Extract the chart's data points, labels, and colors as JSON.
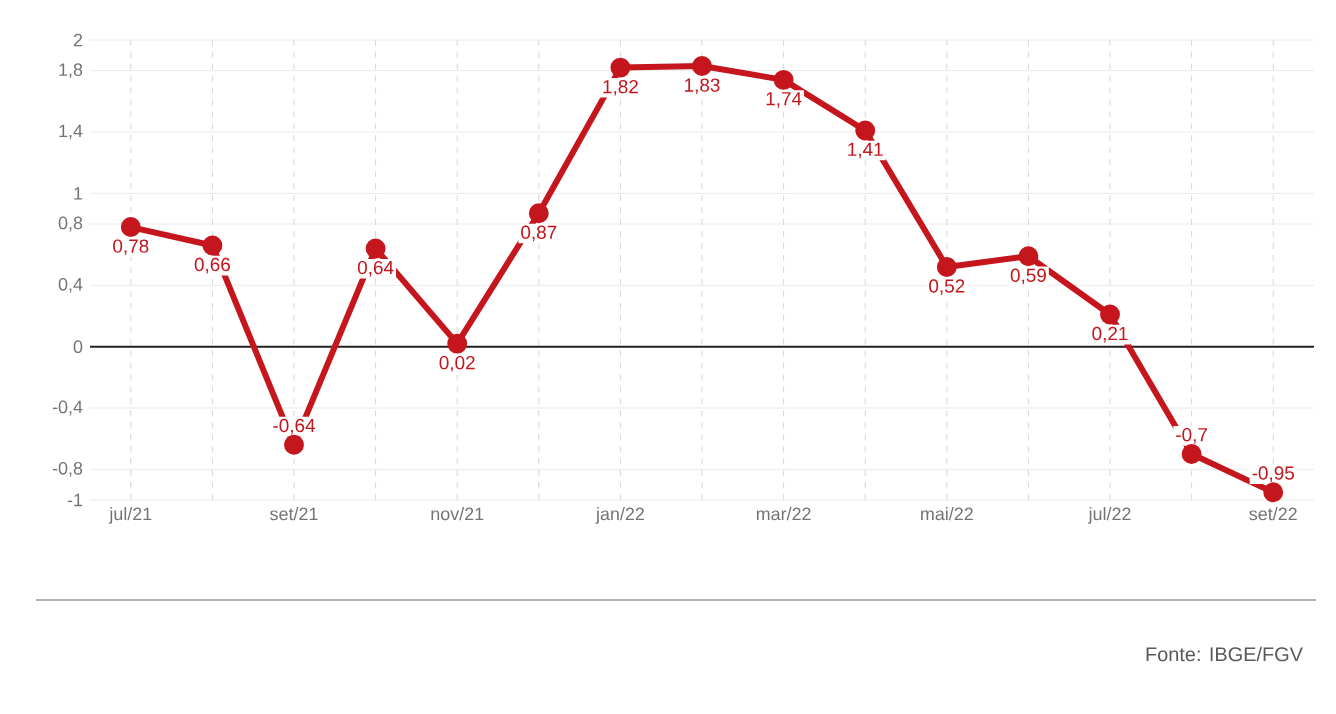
{
  "chart_data": {
    "type": "line",
    "categories": [
      "jul/21",
      null,
      "set/21",
      null,
      "nov/21",
      null,
      "jan/22",
      null,
      "mar/22",
      null,
      "mai/22",
      null,
      "jul/22",
      null,
      "set/22"
    ],
    "series": [
      {
        "color": "#c4161c",
        "values": [
          0.78,
          0.66,
          -0.64,
          0.64,
          0.02,
          0.87,
          1.82,
          1.83,
          1.74,
          1.41,
          0.52,
          0.59,
          0.21,
          -0.7,
          -0.95
        ],
        "value_labels": [
          "0,78",
          "0,66",
          "-0,64",
          "0,64",
          "0,02",
          "0,87",
          "1,82",
          "1,83",
          "1,74",
          "1,41",
          "0,52",
          "0,59",
          "0,21",
          "-0,7",
          "-0,95"
        ]
      }
    ],
    "ylim": [
      -1,
      2
    ],
    "yticks": [
      -1,
      {
        "value": -0.8,
        "label": "-0,8"
      },
      {
        "value": -0.4,
        "label": "-0,4"
      },
      0,
      {
        "value": 0.4,
        "label": "0,4"
      },
      {
        "value": 0.8,
        "label": "0,8"
      },
      1,
      {
        "value": 1.4,
        "label": "1,4"
      },
      {
        "value": 1.8,
        "label": "1,8"
      },
      2
    ],
    "grid": true,
    "marker": "circle",
    "line_style": "solid",
    "ref_lines": [
      {
        "axis": "y",
        "value": 0,
        "color": "#222222"
      }
    ],
    "annotations": [
      "Fonte: IBGE/FGV"
    ]
  }
}
